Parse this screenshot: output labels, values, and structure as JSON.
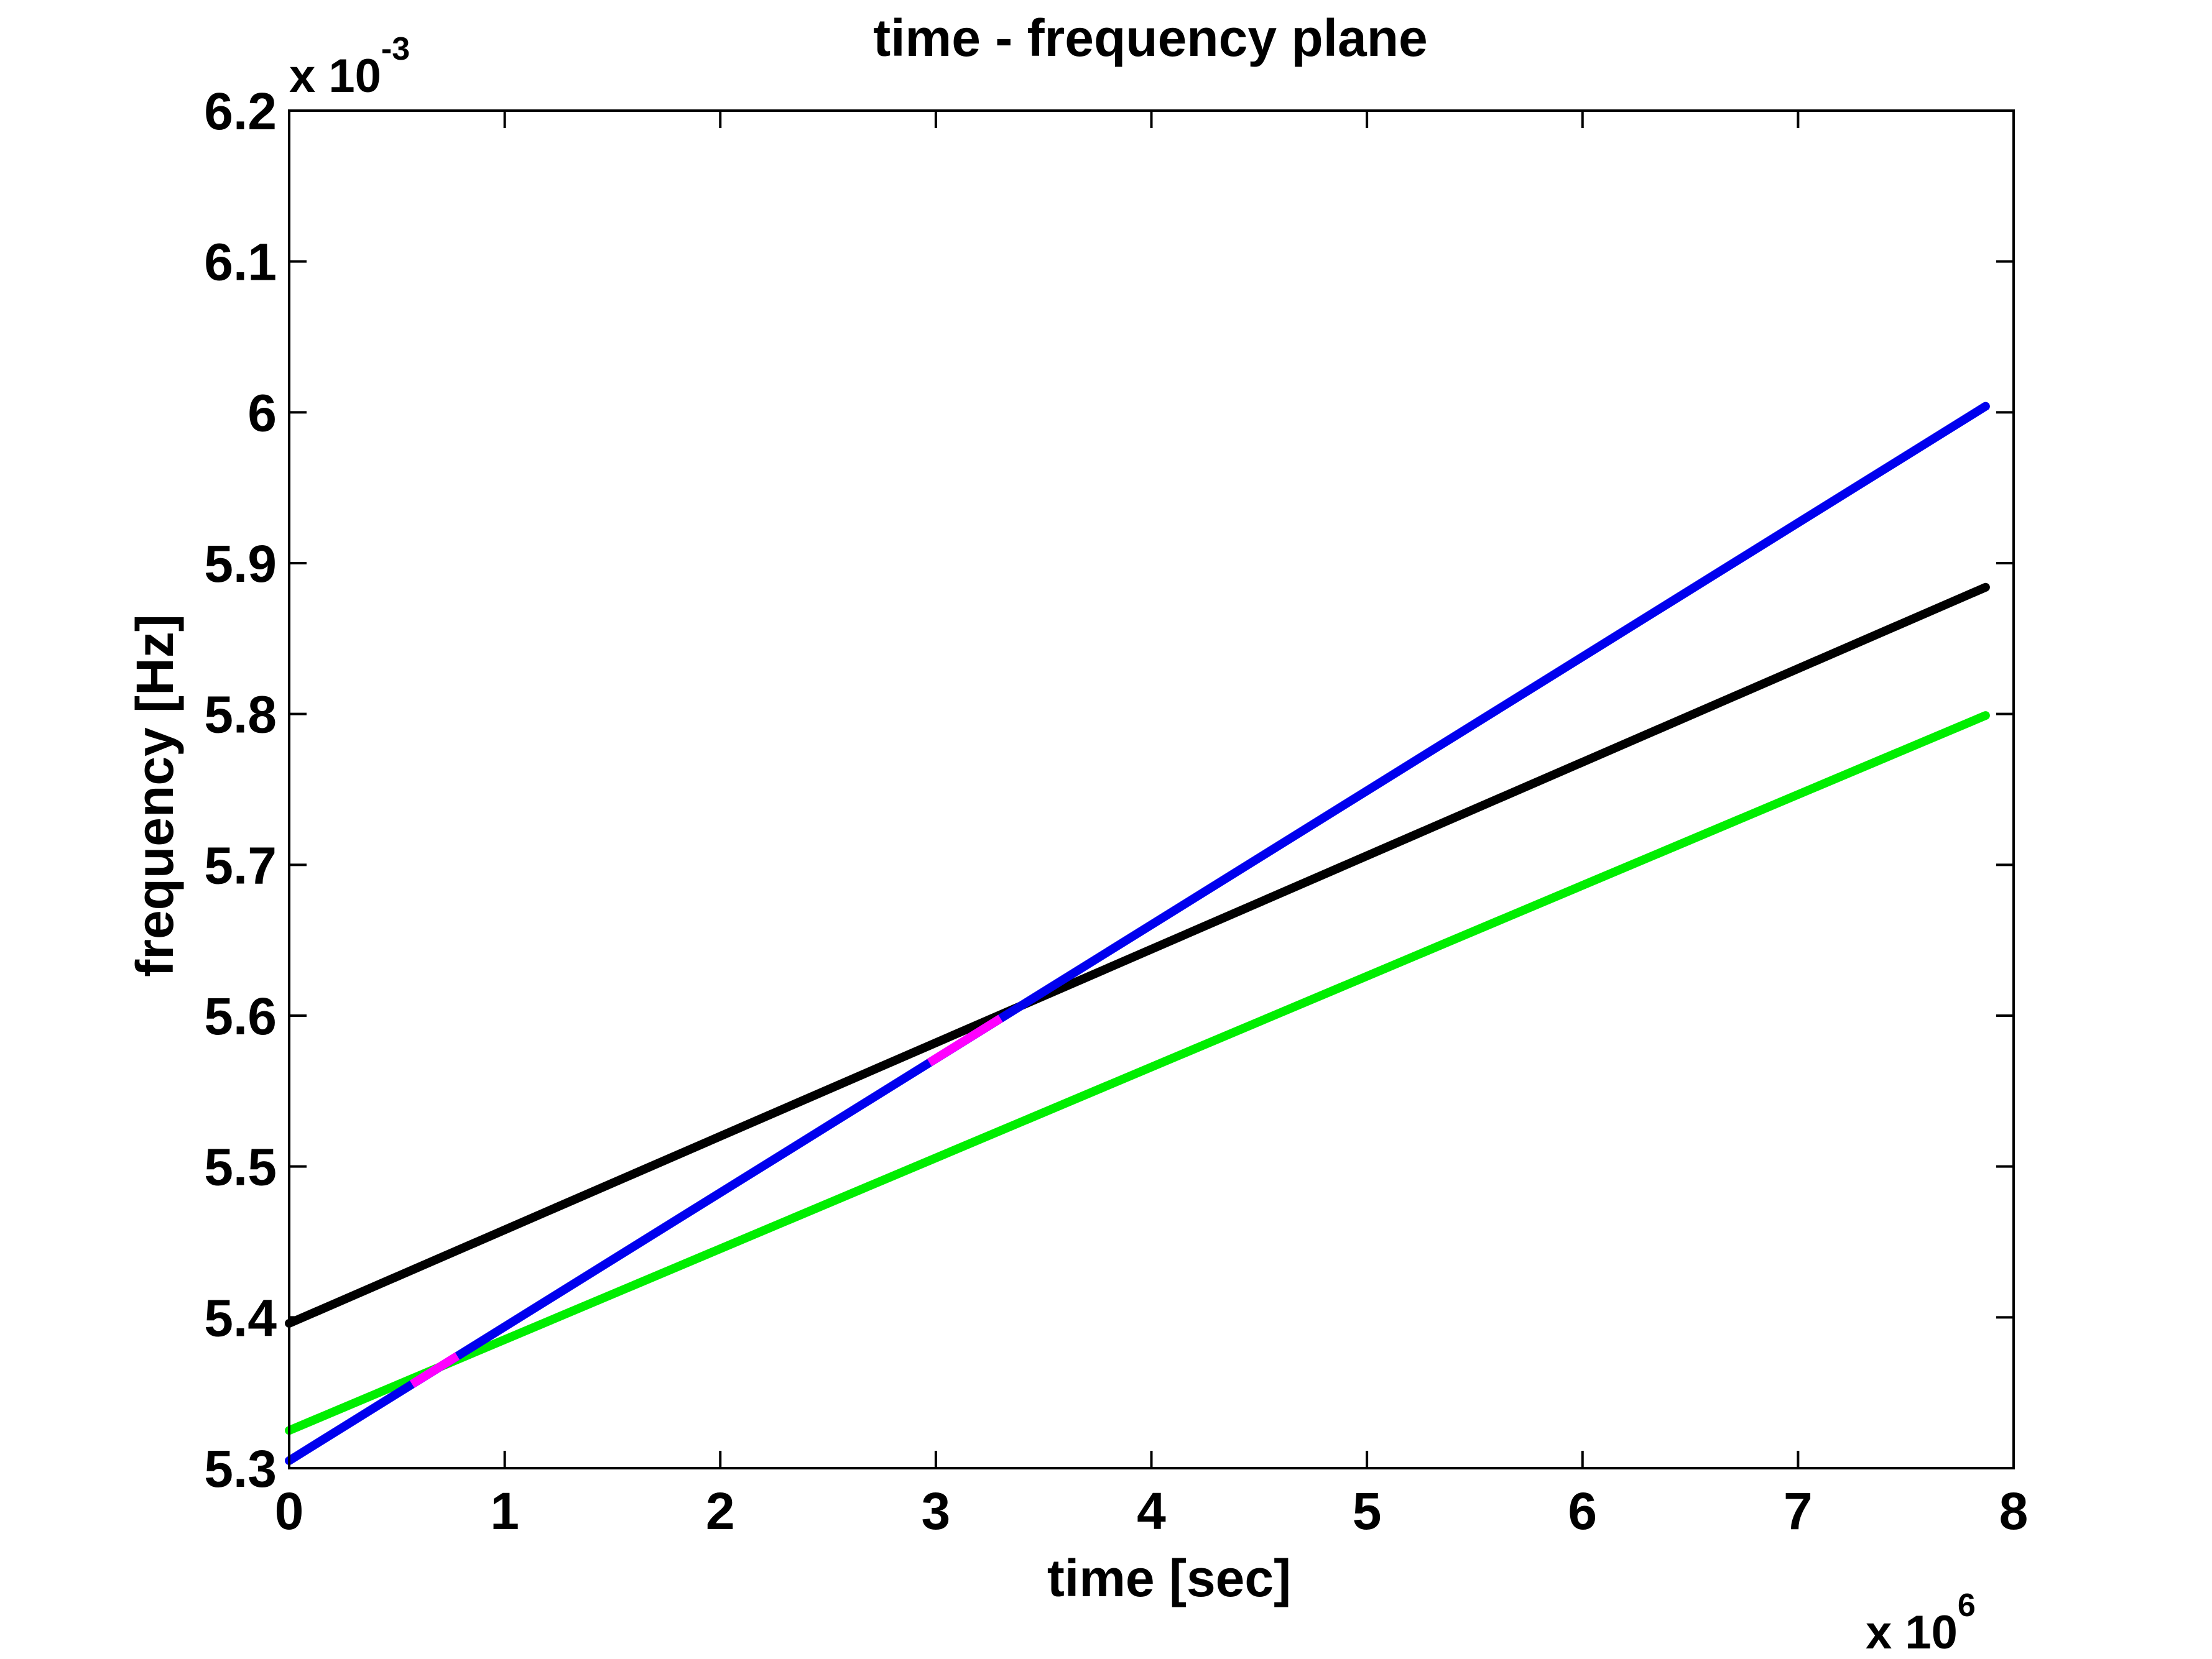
{
  "chart_data": {
    "type": "line",
    "title": "time - frequency plane",
    "xlabel": "time [sec]",
    "ylabel": "frequency [Hz]",
    "x_multiplier": {
      "base": "x 10",
      "exponent": "6"
    },
    "y_multiplier": {
      "base": "x 10",
      "exponent": "-3"
    },
    "xlim": [
      0,
      8
    ],
    "ylim": [
      5.3,
      6.2
    ],
    "xticks": [
      "0",
      "1",
      "2",
      "3",
      "4",
      "5",
      "6",
      "7",
      "8"
    ],
    "yticks": [
      "5.3",
      "5.4",
      "5.5",
      "5.6",
      "5.7",
      "5.8",
      "5.9",
      "6",
      "6.1",
      "6.2"
    ],
    "grid": false,
    "series": [
      {
        "color": "#000000",
        "x": [
          0,
          7.87
        ],
        "y": [
          5.396,
          5.884
        ]
      },
      {
        "color": "#00ee00",
        "x": [
          0,
          7.87
        ],
        "y": [
          5.325,
          5.799
        ]
      },
      {
        "color": "#0000ee",
        "x": [
          0,
          7.87
        ],
        "y": [
          5.305,
          6.004
        ]
      }
    ],
    "highlights": [
      {
        "color": "#ff00ff",
        "x": [
          0.57,
          0.78
        ],
        "y": [
          5.3557,
          5.3744
        ]
      },
      {
        "color": "#ff00ff",
        "x": [
          2.97,
          3.3
        ],
        "y": [
          5.5689,
          5.5982
        ]
      }
    ]
  }
}
